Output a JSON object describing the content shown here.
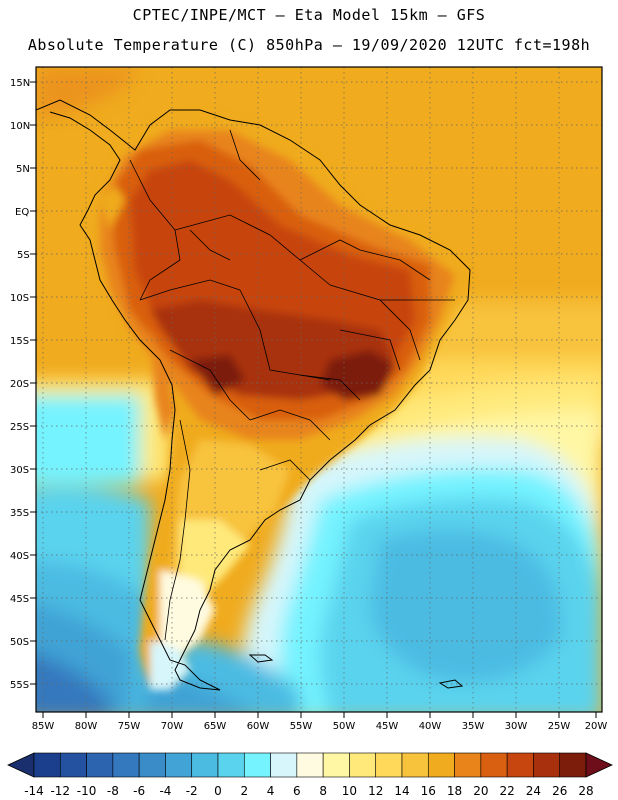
{
  "header": {
    "line1": "CPTEC/INPE/MCT –  Eta Model 15km – GFS",
    "line2": "Absolute Temperature (C) 850hPa – 19/09/2020 12UTC fct=198h"
  },
  "map": {
    "lat_labels": [
      "15N",
      "10N",
      "5N",
      "EQ",
      "5S",
      "10S",
      "15S",
      "20S",
      "25S",
      "30S",
      "35S",
      "40S",
      "45S",
      "50S",
      "55S"
    ],
    "lon_labels": [
      "85W",
      "80W",
      "75W",
      "70W",
      "65W",
      "60W",
      "55W",
      "50W",
      "45W",
      "40W",
      "35W",
      "30W",
      "25W",
      "20W"
    ]
  },
  "colorbar": {
    "labels": [
      "-14",
      "-12",
      "-10",
      "-8",
      "-6",
      "-4",
      "-2",
      "0",
      "2",
      "4",
      "6",
      "8",
      "10",
      "12",
      "14",
      "16",
      "18",
      "20",
      "22",
      "24",
      "26",
      "28"
    ],
    "colors": [
      "#1b3f8c",
      "#2452a0",
      "#2d64b0",
      "#3478bd",
      "#3a8cc8",
      "#41a3d6",
      "#4bbbe2",
      "#5ad3ee",
      "#75f3ff",
      "#d6f6fb",
      "#fffbe0",
      "#fff7a4",
      "#ffe97a",
      "#ffd95a",
      "#f8c33c",
      "#f0ab1e",
      "#e8841a",
      "#d95f11",
      "#c7450f",
      "#a8300d",
      "#7c1d0b"
    ],
    "low_color": "#1a2f6e",
    "high_color": "#6e0e1a"
  }
}
